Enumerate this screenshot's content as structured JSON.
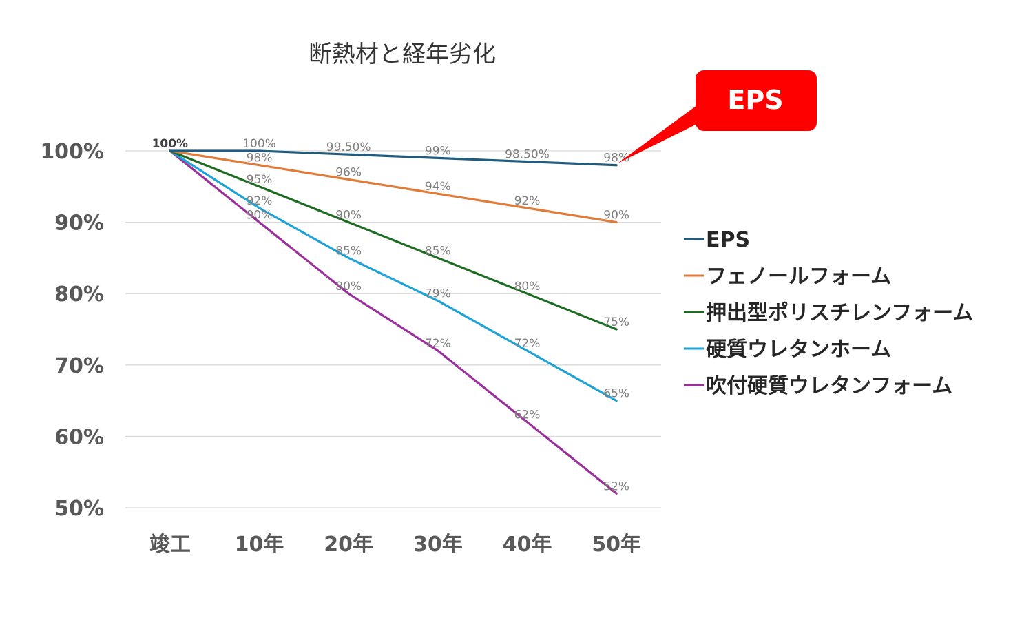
{
  "chart_data": {
    "type": "line",
    "title": "断熱材と経年劣化",
    "xlabel": "",
    "ylabel": "",
    "categories": [
      "竣工",
      "10年",
      "20年",
      "30年",
      "40年",
      "50年"
    ],
    "y_ticks": [
      "100%",
      "90%",
      "80%",
      "70%",
      "60%",
      "50%"
    ],
    "y_tick_values": [
      100,
      90,
      80,
      70,
      60,
      50
    ],
    "ylim": [
      50,
      100
    ],
    "grid": true,
    "legend_position": "right",
    "series": [
      {
        "name": "EPS",
        "color": "#1f5c7f",
        "values": [
          100,
          100,
          99.5,
          99,
          98.5,
          98
        ],
        "labels": [
          "100%",
          "100%",
          "99.50%",
          "99%",
          "98.50%",
          "98%"
        ]
      },
      {
        "name": "フェノールフォーム",
        "color": "#e07b39",
        "values": [
          100,
          98,
          96,
          94,
          92,
          90
        ],
        "labels": [
          "100%",
          "98%",
          "96%",
          "94%",
          "92%",
          "90%"
        ]
      },
      {
        "name": "押出型ポリスチレンフォーム",
        "color": "#1e6b22",
        "values": [
          100,
          95,
          90,
          85,
          80,
          75
        ],
        "labels": [
          "100%",
          "95%",
          "90%",
          "85%",
          "80%",
          "75%"
        ]
      },
      {
        "name": "硬質ウレタンホーム",
        "color": "#1ea3d8",
        "values": [
          100,
          92,
          85,
          79,
          72,
          65
        ],
        "labels": [
          "100%",
          "92%",
          "85%",
          "79%",
          "72%",
          "65%"
        ]
      },
      {
        "name": "吹付硬質ウレタンフォーム",
        "color": "#9b2f9b",
        "values": [
          100,
          90,
          80,
          72,
          62,
          52
        ],
        "labels": [
          "100%",
          "90%",
          "80%",
          "72%",
          "62%",
          "52%"
        ]
      }
    ],
    "annotations": [
      {
        "text": "EPS",
        "target_series": "EPS",
        "target_category": "50年",
        "color": "#ff0000"
      }
    ]
  }
}
